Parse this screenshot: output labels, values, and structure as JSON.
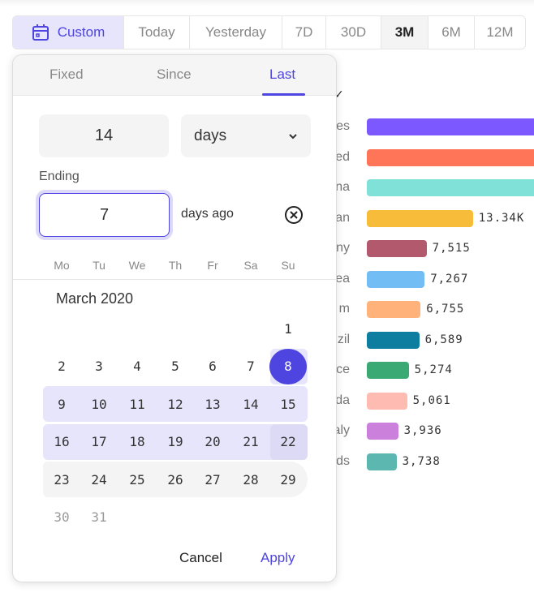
{
  "range_bar": {
    "items": [
      {
        "label": "Custom",
        "icon": "calendar-icon",
        "state": "selected"
      },
      {
        "label": "Today"
      },
      {
        "label": "Yesterday"
      },
      {
        "label": "7D"
      },
      {
        "label": "30D"
      },
      {
        "label": "3M",
        "state": "active"
      },
      {
        "label": "6M"
      },
      {
        "label": "12M"
      }
    ]
  },
  "chart_data": {
    "type": "bar",
    "orientation": "horizontal",
    "categories": [
      "es",
      "ed",
      "na",
      "an",
      "ny",
      "ea",
      "m",
      "zil",
      "ce",
      "da",
      "aly",
      "ds"
    ],
    "values": [
      null,
      null,
      null,
      13340,
      7515,
      7267,
      6755,
      6589,
      5274,
      5061,
      3936,
      3738
    ],
    "value_labels": [
      "",
      "",
      "",
      "13.34K",
      "7,515",
      "7,267",
      "6,755",
      "6,589",
      "5,274",
      "5,061",
      "3,936",
      "3,738"
    ],
    "colors": [
      "#7b58ff",
      "#ff7557",
      "#80e1d9",
      "#f8bc3b",
      "#b2596e",
      "#72bef4",
      "#ffb27a",
      "#0d7ea0",
      "#3ba974",
      "#febbb2",
      "#cb80dc",
      "#5bb7af"
    ]
  },
  "popover": {
    "tabs": [
      "Fixed",
      "Since",
      "Last"
    ],
    "active_tab": "Last",
    "count_value": "14",
    "unit_value": "days",
    "ending_label": "Ending",
    "ending_value": "7",
    "ending_suffix": "days ago",
    "weekdays": [
      "Mo",
      "Tu",
      "We",
      "Th",
      "Fr",
      "Sa",
      "Su"
    ],
    "month_title": "March 2020",
    "selected_day": "8",
    "cancel_label": "Cancel",
    "apply_label": "Apply"
  },
  "colors": {
    "accent": "#4e44e0",
    "range_fill": "#e6e5fb",
    "hover_fill": "#f4f4f4"
  }
}
